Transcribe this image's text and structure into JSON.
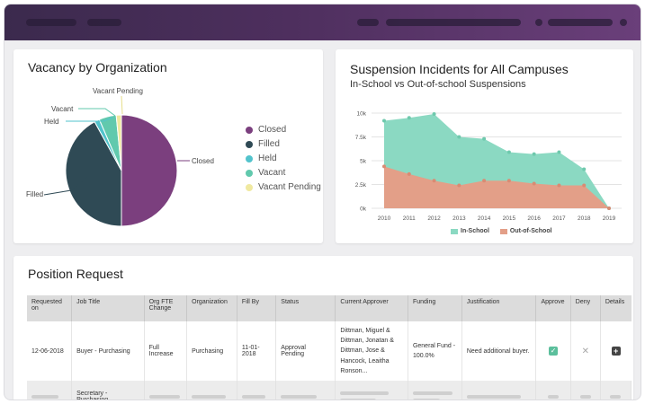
{
  "colors": {
    "closed": "#7b3f7e",
    "filled": "#2f4a55",
    "held": "#52c3cc",
    "vacant": "#61c9ad",
    "vacant_pending": "#f0e9a0",
    "in_school": "#8bd9c2",
    "out_of_school": "#e39f88",
    "topbar": "#4e2f5e"
  },
  "vacancy": {
    "title": "Vacancy by Organization",
    "legend": [
      "Closed",
      "Filled",
      "Held",
      "Vacant",
      "Vacant Pending"
    ],
    "labels": {
      "closed": "Closed",
      "filled": "Filled",
      "held": "Held",
      "vacant": "Vacant",
      "vacant_pending": "Vacant Pending"
    }
  },
  "suspension": {
    "title": "Suspension Incidents for All Campuses",
    "subtitle": "In-School vs Out-of-school Suspensions",
    "legend_in": "In-School",
    "legend_out": "Out-of-School"
  },
  "chart_data": [
    {
      "type": "pie",
      "title": "Vacancy by Organization",
      "categories": [
        "Closed",
        "Filled",
        "Held",
        "Vacant",
        "Vacant Pending"
      ],
      "values": [
        50,
        42,
        1.5,
        5,
        1.5
      ],
      "legend": "right"
    },
    {
      "type": "area",
      "title": "Suspension Incidents for All Campuses",
      "subtitle": "In-School vs Out-of-school Suspensions",
      "x": [
        "2010",
        "2011",
        "2012",
        "2013",
        "2014",
        "2015",
        "2016",
        "2017",
        "2018",
        "2019"
      ],
      "y_ticks": [
        "0k",
        "2.5k",
        "5k",
        "7.5k",
        "10k"
      ],
      "ylim": [
        0,
        10000
      ],
      "grid": true,
      "legend": "bottom",
      "series": [
        {
          "name": "In-School",
          "values": [
            9200,
            9500,
            9900,
            7500,
            7300,
            5900,
            5700,
            5900,
            4100,
            0
          ]
        },
        {
          "name": "Out-of-School",
          "values": [
            4400,
            3600,
            2900,
            2400,
            2900,
            2900,
            2600,
            2400,
            2400,
            0
          ]
        }
      ]
    }
  ],
  "positions": {
    "title": "Position Request",
    "headers": {
      "requested_on": "Requested on",
      "job_title": "Job Title",
      "org_fte": "Org FTE Change",
      "organization": "Organization",
      "fill_by": "Fill By",
      "status": "Status",
      "current_approver": "Current Approver",
      "funding": "Funding",
      "justification": "Justification",
      "approve": "Approve",
      "deny": "Deny",
      "details": "Details"
    },
    "row": {
      "requested_on": "12-06-2018",
      "job_title": "Buyer - Purchasing",
      "org_fte": "Full Increase",
      "organization": "Purchasing",
      "fill_by": "11-01-2018",
      "status": "Approval Pending",
      "current_approver": "Dittman, Miguel & Dittman, Jonatan & Dittman, Jose & Hancock, Leaitha Ronson...",
      "funding": "General Fund - 100.0%",
      "justification": "Need additional buyer.",
      "approve_icon": "check-icon",
      "deny_icon": "x-icon",
      "details_icon": "plus-icon"
    },
    "ghost_row": {
      "job_title": "Secretary - Purchasing"
    }
  }
}
